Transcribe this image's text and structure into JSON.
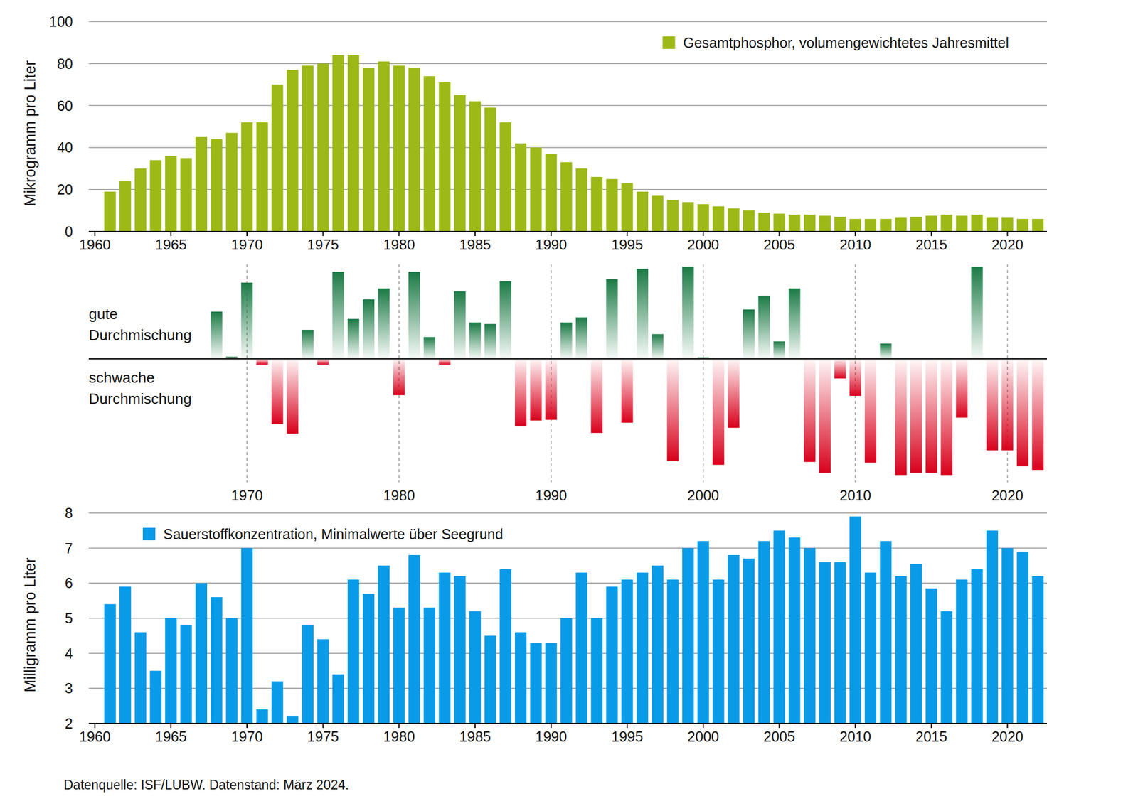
{
  "chart_data": [
    {
      "type": "bar",
      "ylabel": "Mikrogramm pro Liter",
      "x": [
        1961,
        1962,
        1963,
        1964,
        1965,
        1966,
        1967,
        1968,
        1969,
        1970,
        1971,
        1972,
        1973,
        1974,
        1975,
        1976,
        1977,
        1978,
        1979,
        1980,
        1981,
        1982,
        1983,
        1984,
        1985,
        1986,
        1987,
        1988,
        1989,
        1990,
        1991,
        1992,
        1993,
        1994,
        1995,
        1996,
        1997,
        1998,
        1999,
        2000,
        2001,
        2002,
        2003,
        2004,
        2005,
        2006,
        2007,
        2008,
        2009,
        2010,
        2011,
        2012,
        2013,
        2014,
        2015,
        2016,
        2017,
        2018,
        2019,
        2020,
        2021,
        2022
      ],
      "series": [
        {
          "name": "Gesamtphosphor, volumengewichtetes Jahresmittel",
          "color": "#9cb917",
          "values": [
            19,
            24,
            30,
            34,
            36,
            35,
            45,
            44,
            47,
            52,
            52,
            70,
            77,
            79,
            80,
            84,
            84,
            78,
            81,
            79,
            78,
            74,
            71,
            65,
            62,
            59,
            52,
            42,
            40,
            37,
            33,
            30,
            26,
            25,
            23,
            19,
            17,
            15,
            14,
            13,
            12,
            11,
            10,
            9,
            8.5,
            8,
            8,
            7.5,
            7,
            6,
            6,
            6,
            6.5,
            7,
            7.5,
            8,
            7.5,
            8,
            6.5,
            6.5,
            6,
            6
          ]
        }
      ],
      "xlim": [
        1959.6,
        2022.6
      ],
      "xticks": [
        1960,
        1965,
        1970,
        1975,
        1980,
        1985,
        1990,
        1995,
        2000,
        2005,
        2010,
        2015,
        2020
      ],
      "ylim": [
        0,
        100
      ],
      "yticks": [
        0,
        20,
        40,
        60,
        80,
        100
      ],
      "grid": "y",
      "legend": "top-right"
    },
    {
      "type": "bar",
      "x": [
        1968,
        1969,
        1970,
        1971,
        1972,
        1973,
        1974,
        1975,
        1976,
        1977,
        1978,
        1979,
        1980,
        1981,
        1982,
        1983,
        1984,
        1985,
        1986,
        1987,
        1988,
        1989,
        1990,
        1991,
        1992,
        1993,
        1994,
        1995,
        1996,
        1997,
        1998,
        1999,
        2000,
        2001,
        2002,
        2003,
        2004,
        2005,
        2006,
        2007,
        2008,
        2009,
        2010,
        2011,
        2012,
        2013,
        2014,
        2015,
        2016,
        2017,
        2018,
        2019,
        2020,
        2021,
        2022
      ],
      "values": [
        0.65,
        0.03,
        1.05,
        -0.08,
        -0.9,
        -1.03,
        0.4,
        -0.08,
        1.2,
        0.55,
        0.82,
        0.97,
        -0.5,
        1.2,
        0.3,
        -0.08,
        0.93,
        0.5,
        0.48,
        1.07,
        -0.93,
        -0.85,
        -0.84,
        0.5,
        0.57,
        -1.02,
        1.1,
        -0.88,
        1.24,
        0.34,
        -1.41,
        1.27,
        0.02,
        -1.46,
        -0.95,
        0.68,
        0.87,
        0.24,
        0.97,
        -1.42,
        -1.57,
        -0.27,
        -0.51,
        -1.43,
        0.21,
        -1.6,
        -1.57,
        -1.57,
        -1.6,
        -0.81,
        1.27,
        -1.26,
        -1.26,
        -1.48,
        -1.53
      ],
      "colors": [
        "#1b7a45",
        "#1b7a45",
        "#1b7a45",
        "#d9001b",
        "#d9001b",
        "#d9001b",
        "#1b7a45",
        "#d9001b",
        "#1b7a45",
        "#1b7a45",
        "#1b7a45",
        "#1b7a45",
        "#d9001b",
        "#1b7a45",
        "#1b7a45",
        "#d9001b",
        "#1b7a45",
        "#1b7a45",
        "#1b7a45",
        "#1b7a45",
        "#d9001b",
        "#d9001b",
        "#d9001b",
        "#1b7a45",
        "#1b7a45",
        "#d9001b",
        "#1b7a45",
        "#d9001b",
        "#1b7a45",
        "#1b7a45",
        "#d9001b",
        "#1b7a45",
        "#1b7a45",
        "#d9001b",
        "#d9001b",
        "#1b7a45",
        "#1b7a45",
        "#1b7a45",
        "#1b7a45",
        "#d9001b",
        "#d9001b",
        "#d9001b",
        "#d9001b",
        "#d9001b",
        "#1b7a45",
        "#d9001b",
        "#d9001b",
        "#d9001b",
        "#d9001b",
        "#d9001b",
        "#1b7a45",
        "#d9001b",
        "#d9001b",
        "#d9001b",
        "#d9001b"
      ],
      "annotations": [
        "gute\nDurchmischung",
        "schwache\nDurchmischung"
      ],
      "xlim": [
        1959.6,
        2022.6
      ],
      "xticks": [
        1970,
        1980,
        1990,
        2000,
        2010,
        2020
      ],
      "ylim": [
        -1.7,
        1.3
      ],
      "grid": "x",
      "tick_labels": "x"
    },
    {
      "type": "bar",
      "ylabel": "Milligramm pro Liter",
      "x": [
        1961,
        1962,
        1963,
        1964,
        1965,
        1966,
        1967,
        1968,
        1969,
        1970,
        1971,
        1972,
        1973,
        1974,
        1975,
        1976,
        1977,
        1978,
        1979,
        1980,
        1981,
        1982,
        1983,
        1984,
        1985,
        1986,
        1987,
        1988,
        1989,
        1990,
        1991,
        1992,
        1993,
        1994,
        1995,
        1996,
        1997,
        1998,
        1999,
        2000,
        2001,
        2002,
        2003,
        2004,
        2005,
        2006,
        2007,
        2008,
        2009,
        2010,
        2011,
        2012,
        2013,
        2014,
        2015,
        2016,
        2017,
        2018,
        2019,
        2020,
        2021,
        2022
      ],
      "series": [
        {
          "name": "Sauerstoffkonzentration, Minimalwerte über Seegrund",
          "color": "#0a9be8",
          "values": [
            5.4,
            5.9,
            4.6,
            3.5,
            5.0,
            4.8,
            6.0,
            5.6,
            5.0,
            7.0,
            2.4,
            3.2,
            2.2,
            4.8,
            4.4,
            3.4,
            6.1,
            5.7,
            6.5,
            5.3,
            6.8,
            5.3,
            6.3,
            6.2,
            5.2,
            4.5,
            6.4,
            4.6,
            4.3,
            4.3,
            5.0,
            6.3,
            5.0,
            5.9,
            6.1,
            6.3,
            6.5,
            6.1,
            7.0,
            7.2,
            6.1,
            6.8,
            6.7,
            7.2,
            7.5,
            7.3,
            7.0,
            6.6,
            6.6,
            7.9,
            6.3,
            7.2,
            6.2,
            6.55,
            5.85,
            5.2,
            6.1,
            6.4,
            7.5,
            7.0,
            6.9,
            6.2
          ]
        }
      ],
      "xlim": [
        1959.6,
        2022.6
      ],
      "xticks": [
        1960,
        1965,
        1970,
        1975,
        1980,
        1985,
        1990,
        1995,
        2000,
        2005,
        2010,
        2015,
        2020
      ],
      "ylim": [
        2,
        8
      ],
      "yticks": [
        2,
        3,
        4,
        5,
        6,
        7,
        8
      ],
      "grid": "y",
      "legend": "top-left"
    }
  ],
  "source": "Datenquelle: ISF/LUBW. Datenstand: März 2024."
}
